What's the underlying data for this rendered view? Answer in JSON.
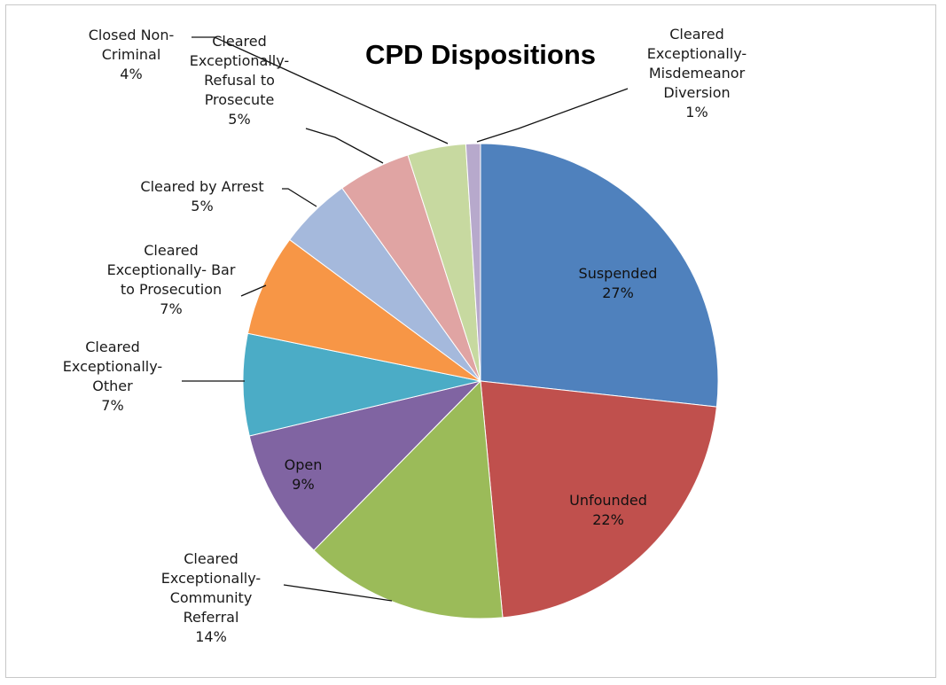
{
  "chart_data": {
    "type": "pie",
    "title": "CPD Dispositions",
    "start_angle_deg": 0,
    "direction": "clockwise",
    "slices": [
      {
        "name": "Suspended",
        "percent_label": "27%",
        "value": 27,
        "color": "#4f81bd",
        "label_lines": [
          "Suspended"
        ],
        "label_position": "inside"
      },
      {
        "name": "Unfounded",
        "percent_label": "22%",
        "value": 22,
        "color": "#c0504d",
        "label_lines": [
          "Unfounded"
        ],
        "label_position": "inside"
      },
      {
        "name": "Cleared Exceptionally-Community Referral",
        "percent_label": "14%",
        "value": 14,
        "color": "#9bbb59",
        "label_lines": [
          "Cleared",
          "Exceptionally-",
          "Community",
          "Referral"
        ],
        "label_position": "outside"
      },
      {
        "name": "Open",
        "percent_label": "9%",
        "value": 9,
        "color": "#8064a2",
        "label_lines": [
          "Open"
        ],
        "label_position": "inside"
      },
      {
        "name": "Cleared Exceptionally-Other",
        "percent_label": "7%",
        "value": 7,
        "color": "#4bacc6",
        "label_lines": [
          "Cleared",
          "Exceptionally-",
          "Other"
        ],
        "label_position": "outside"
      },
      {
        "name": "Cleared Exceptionally- Bar to Prosecution",
        "percent_label": "7%",
        "value": 7,
        "color": "#f79646",
        "label_lines": [
          "Cleared",
          "Exceptionally- Bar",
          "to Prosecution"
        ],
        "label_position": "outside"
      },
      {
        "name": "Cleared by Arrest",
        "percent_label": "5%",
        "value": 5,
        "color": "#a5b9dc",
        "label_lines": [
          "Cleared by Arrest"
        ],
        "label_position": "outside"
      },
      {
        "name": "Cleared Exceptionally-Refusal to Prosecute",
        "percent_label": "5%",
        "value": 5,
        "color": "#e0a4a3",
        "label_lines": [
          "Cleared",
          "Exceptionally-",
          "Refusal to",
          "Prosecute"
        ],
        "label_position": "outside"
      },
      {
        "name": "Closed Non-Criminal",
        "percent_label": "4%",
        "value": 4,
        "color": "#c7d9a0",
        "label_lines": [
          "Closed Non-",
          "Criminal"
        ],
        "label_position": "outside"
      },
      {
        "name": "Cleared Exceptionally-Misdemeanor Diversion",
        "percent_label": "1%",
        "value": 1,
        "color": "#b7a9cc",
        "label_lines": [
          "Cleared",
          "Exceptionally-",
          "Misdemeanor",
          "Diversion"
        ],
        "label_position": "outside"
      }
    ],
    "legend": "none",
    "data_labels": "category name and percentage"
  }
}
